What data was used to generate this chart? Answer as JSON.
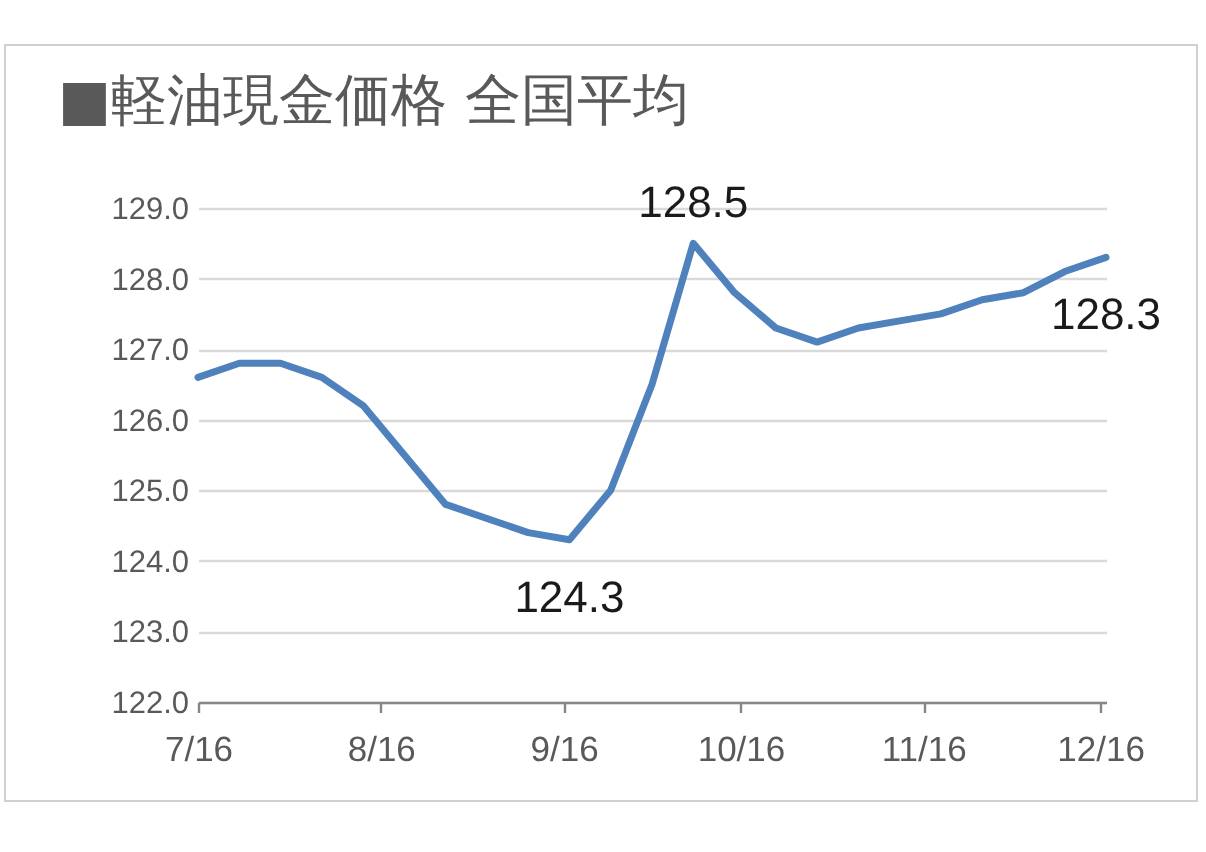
{
  "chart_data": {
    "type": "line",
    "title": "■軽油現金価格 全国平均",
    "x": [
      "--07-16",
      "--07-23",
      "--07-30",
      "--08-06",
      "--08-13",
      "--08-20",
      "--08-27",
      "--09-03",
      "--09-10",
      "--09-17",
      "--09-24",
      "--10-01",
      "--10-08",
      "--10-15",
      "--10-22",
      "--10-29",
      "--11-05",
      "--11-12",
      "--11-19",
      "--11-26",
      "--12-03",
      "--12-10",
      "--12-17"
    ],
    "values": [
      126.6,
      126.8,
      126.8,
      126.6,
      126.2,
      125.5,
      124.8,
      124.6,
      124.4,
      124.3,
      125.0,
      126.5,
      128.5,
      127.8,
      127.3,
      127.1,
      127.3,
      127.4,
      127.5,
      127.7,
      127.8,
      128.1,
      128.3
    ],
    "value_labels": [
      null,
      null,
      null,
      null,
      null,
      null,
      null,
      null,
      null,
      "124.3",
      null,
      null,
      "128.5",
      null,
      null,
      null,
      null,
      null,
      null,
      null,
      null,
      null,
      "128.3"
    ],
    "color": "#4f81bd",
    "xlim": [
      "--07-16",
      "--12-17"
    ],
    "xticks": [
      {
        "value": "--07-16",
        "label": "7/16"
      },
      {
        "value": "--08-16",
        "label": "8/16"
      },
      {
        "value": "--09-16",
        "label": "9/16"
      },
      {
        "value": "--10-16",
        "label": "10/16"
      },
      {
        "value": "--11-16",
        "label": "11/16"
      },
      {
        "value": "--12-16",
        "label": "12/16"
      }
    ],
    "ylim": [
      122,
      129
    ],
    "yticks": [
      {
        "value": 122,
        "label": "122.0"
      },
      {
        "value": 123,
        "label": "123.0"
      },
      {
        "value": 124,
        "label": "124.0"
      },
      {
        "value": 125,
        "label": "125.0"
      },
      {
        "value": 126,
        "label": "126.0"
      },
      {
        "value": 127,
        "label": "127.0"
      },
      {
        "value": 128,
        "label": "128.0"
      },
      {
        "value": 129,
        "label": "129.0"
      }
    ],
    "grid": "y",
    "line_style": "solid"
  }
}
